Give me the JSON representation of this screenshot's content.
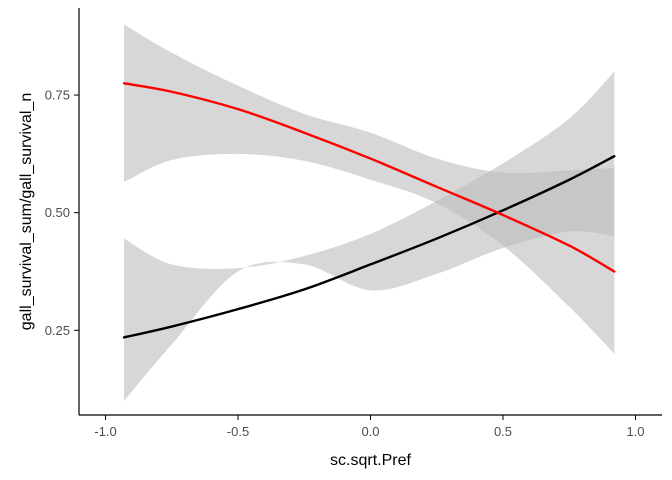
{
  "chart_data": {
    "type": "line",
    "title": "",
    "xlabel": "sc.sqrt.Pref",
    "ylabel": "gall_survival_sum/gall_survival_n",
    "xlim": [
      -1.1,
      1.1
    ],
    "ylim": [
      0.07,
      0.935
    ],
    "x_ticks": [
      -1.0,
      -0.5,
      0.0,
      0.5,
      1.0
    ],
    "x_tick_labels": [
      "-1.0",
      "-0.5",
      "0.0",
      "0.5",
      "1.0"
    ],
    "y_ticks": [
      0.25,
      0.5,
      0.75
    ],
    "y_tick_labels": [
      "0.25",
      "0.50",
      "0.75"
    ],
    "grid": false,
    "legend": "none",
    "ribbon_color": "#bdbdbd",
    "series": [
      {
        "color": "#000000",
        "x": [
          -0.93,
          -0.75,
          -0.5,
          -0.25,
          0.0,
          0.25,
          0.5,
          0.75,
          0.92
        ],
        "y": [
          0.235,
          0.258,
          0.295,
          0.337,
          0.39,
          0.445,
          0.505,
          0.57,
          0.62
        ],
        "lower": [
          0.1,
          0.22,
          0.375,
          0.39,
          0.335,
          0.37,
          0.425,
          0.46,
          0.45
        ],
        "upper": [
          0.445,
          0.39,
          0.382,
          0.408,
          0.455,
          0.525,
          0.605,
          0.7,
          0.8
        ]
      },
      {
        "color": "#ff0000",
        "x": [
          -0.93,
          -0.75,
          -0.5,
          -0.25,
          0.0,
          0.25,
          0.5,
          0.75,
          0.92
        ],
        "y": [
          0.775,
          0.757,
          0.72,
          0.67,
          0.615,
          0.555,
          0.495,
          0.43,
          0.375
        ],
        "lower": [
          0.565,
          0.612,
          0.625,
          0.61,
          0.57,
          0.52,
          0.43,
          0.3,
          0.2
        ],
        "upper": [
          0.9,
          0.84,
          0.77,
          0.71,
          0.67,
          0.615,
          0.585,
          0.59,
          0.595
        ]
      }
    ]
  }
}
